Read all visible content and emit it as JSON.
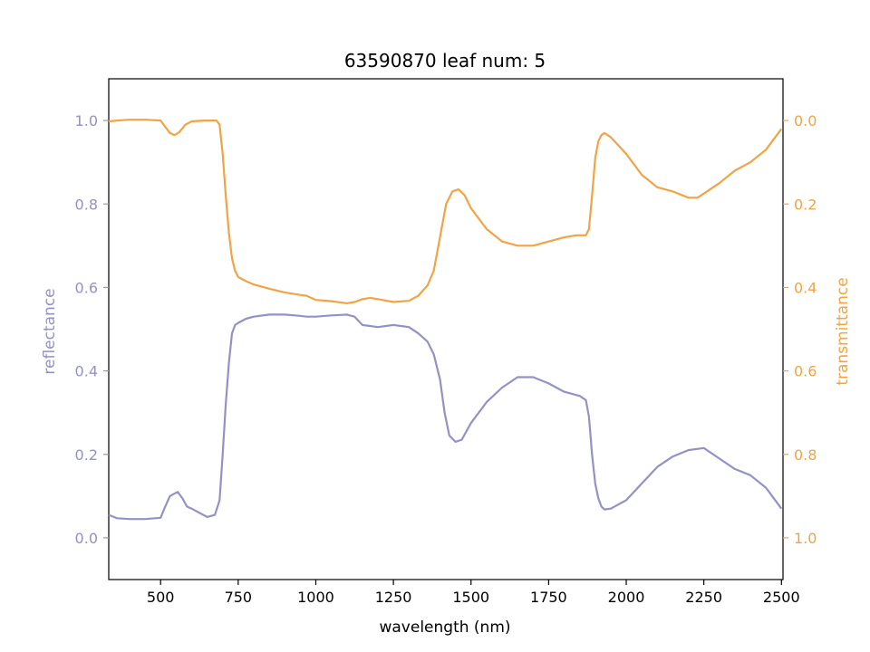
{
  "chart_data": {
    "type": "line",
    "title": "63590870 leaf num: 5",
    "xlabel": "wavelength (nm)",
    "ylabel_left": "reflectance",
    "ylabel_right": "transmittance",
    "xlim": [
      333,
      2505
    ],
    "ylim_left": [
      -0.1,
      1.1
    ],
    "ylim_right_inverted": [
      1.1,
      -0.1
    ],
    "x_ticks": [
      500,
      750,
      1000,
      1250,
      1500,
      1750,
      2000,
      2250,
      2500
    ],
    "y_ticks_left": [
      0.0,
      0.2,
      0.4,
      0.6,
      0.8,
      1.0
    ],
    "y_ticks_right": [
      0.0,
      0.2,
      0.4,
      0.6,
      0.8,
      1.0
    ],
    "x_tick_labels": [
      "500",
      "750",
      "1000",
      "1250",
      "1500",
      "1750",
      "2000",
      "2250",
      "2500"
    ],
    "y_tick_labels_left": [
      "0.0",
      "0.2",
      "0.4",
      "0.6",
      "0.8",
      "1.0"
    ],
    "y_tick_labels_right": [
      "0.0",
      "0.2",
      "0.4",
      "0.6",
      "0.8",
      "1.0"
    ],
    "grid": false,
    "colors": {
      "reflectance": "#9491c6",
      "transmittance": "#f0a445"
    },
    "series": [
      {
        "axis": "left",
        "x": [
          333,
          360,
          400,
          450,
          500,
          515,
          530,
          555,
          570,
          585,
          600,
          625,
          650,
          675,
          690,
          700,
          710,
          720,
          730,
          740,
          750,
          775,
          800,
          850,
          900,
          950,
          970,
          985,
          1000,
          1050,
          1100,
          1125,
          1150,
          1200,
          1250,
          1300,
          1330,
          1360,
          1380,
          1400,
          1415,
          1430,
          1450,
          1470,
          1500,
          1550,
          1600,
          1650,
          1700,
          1750,
          1800,
          1850,
          1870,
          1880,
          1890,
          1900,
          1910,
          1920,
          1930,
          1950,
          2000,
          2050,
          2100,
          2150,
          2200,
          2250,
          2300,
          2350,
          2400,
          2450,
          2500
        ],
        "y": [
          0.055,
          0.047,
          0.045,
          0.045,
          0.048,
          0.075,
          0.1,
          0.11,
          0.095,
          0.075,
          0.07,
          0.06,
          0.05,
          0.055,
          0.09,
          0.2,
          0.32,
          0.42,
          0.49,
          0.51,
          0.515,
          0.525,
          0.53,
          0.535,
          0.535,
          0.532,
          0.53,
          0.53,
          0.53,
          0.533,
          0.535,
          0.53,
          0.51,
          0.505,
          0.51,
          0.505,
          0.49,
          0.47,
          0.44,
          0.38,
          0.3,
          0.245,
          0.23,
          0.235,
          0.275,
          0.325,
          0.36,
          0.385,
          0.385,
          0.37,
          0.35,
          0.34,
          0.33,
          0.29,
          0.2,
          0.13,
          0.095,
          0.075,
          0.068,
          0.07,
          0.09,
          0.13,
          0.17,
          0.195,
          0.21,
          0.215,
          0.19,
          0.165,
          0.15,
          0.12,
          0.07
        ]
      },
      {
        "axis": "right",
        "x": [
          333,
          360,
          400,
          450,
          500,
          515,
          530,
          545,
          560,
          580,
          600,
          640,
          660,
          680,
          690,
          700,
          710,
          720,
          730,
          740,
          750,
          775,
          800,
          850,
          900,
          950,
          970,
          1000,
          1050,
          1100,
          1125,
          1150,
          1175,
          1200,
          1250,
          1300,
          1330,
          1360,
          1380,
          1400,
          1420,
          1440,
          1460,
          1480,
          1500,
          1550,
          1600,
          1650,
          1700,
          1750,
          1800,
          1840,
          1870,
          1880,
          1890,
          1900,
          1910,
          1920,
          1930,
          1950,
          2000,
          2050,
          2100,
          2150,
          2200,
          2230,
          2250,
          2300,
          2350,
          2400,
          2450,
          2500
        ],
        "y": [
          0.002,
          0.0,
          -0.002,
          -0.002,
          0.0,
          0.015,
          0.03,
          0.035,
          0.028,
          0.01,
          0.002,
          0.0,
          0.0,
          0.0,
          0.01,
          0.08,
          0.18,
          0.27,
          0.33,
          0.36,
          0.375,
          0.385,
          0.393,
          0.403,
          0.412,
          0.418,
          0.42,
          0.43,
          0.433,
          0.438,
          0.435,
          0.428,
          0.425,
          0.428,
          0.435,
          0.432,
          0.42,
          0.395,
          0.36,
          0.28,
          0.2,
          0.17,
          0.165,
          0.18,
          0.21,
          0.26,
          0.29,
          0.3,
          0.3,
          0.29,
          0.28,
          0.275,
          0.275,
          0.26,
          0.18,
          0.09,
          0.05,
          0.035,
          0.03,
          0.04,
          0.08,
          0.13,
          0.16,
          0.17,
          0.185,
          0.185,
          0.175,
          0.15,
          0.12,
          0.1,
          0.07,
          0.02
        ]
      }
    ]
  }
}
